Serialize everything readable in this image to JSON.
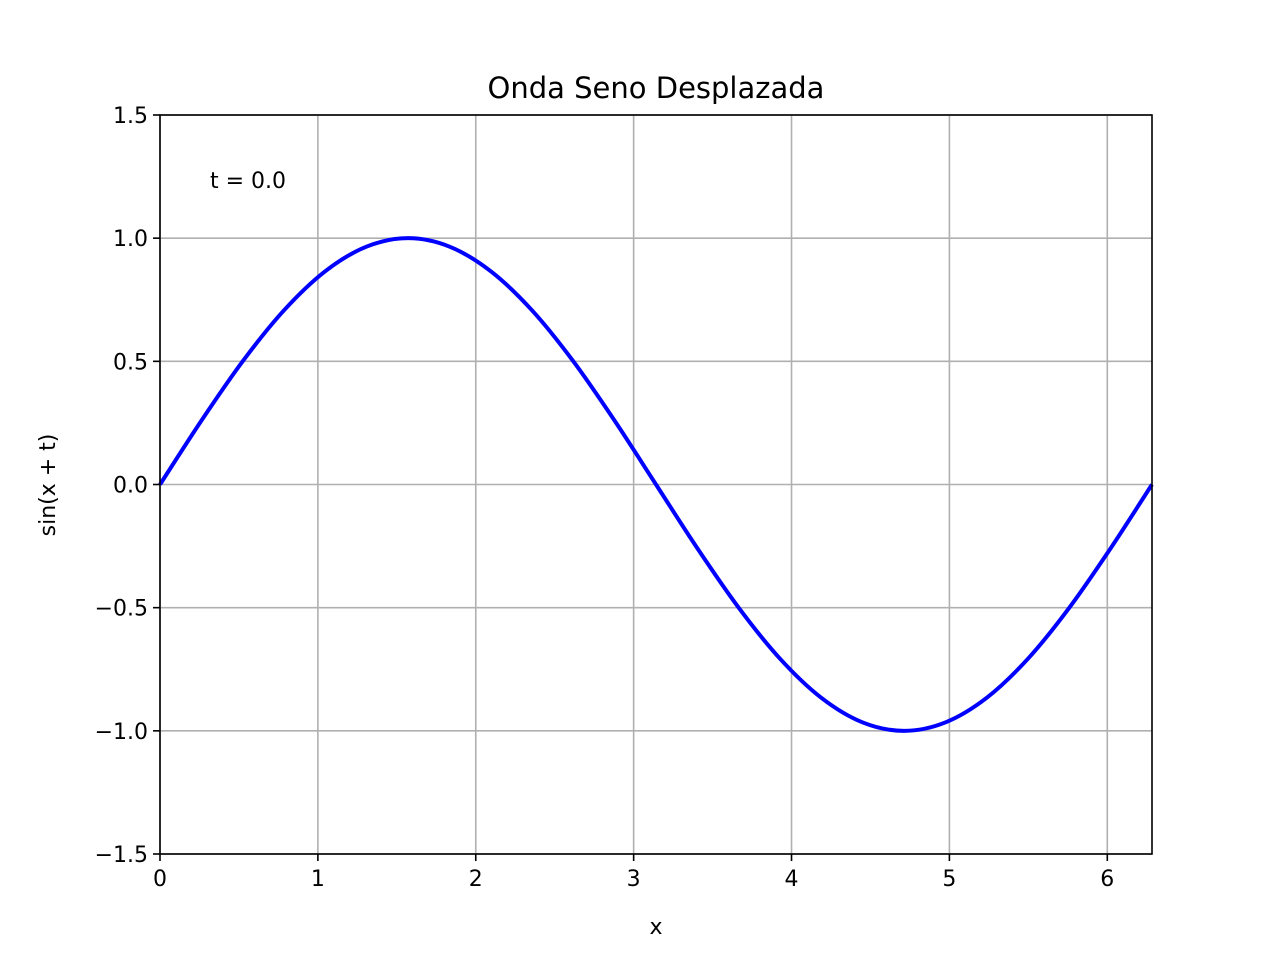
{
  "chart_data": {
    "type": "line",
    "title": "Onda Seno Desplazada",
    "xlabel": "x",
    "ylabel": "sin(x + t)",
    "xlim": [
      0,
      6.2832
    ],
    "ylim": [
      -1.5,
      1.5
    ],
    "grid": true,
    "x_ticks": [
      0,
      1,
      2,
      3,
      4,
      5,
      6
    ],
    "x_tick_labels": [
      "0",
      "1",
      "2",
      "3",
      "4",
      "5",
      "6"
    ],
    "y_ticks": [
      1.5,
      1.0,
      0.5,
      0.0,
      -0.5,
      -1.0,
      -1.5
    ],
    "y_tick_labels": [
      "1.5",
      "1.0",
      "0.5",
      "0.0",
      "−0.5",
      "−1.0",
      "−1.5"
    ],
    "annotation": "t = 0.0",
    "series": [
      {
        "color": "#0000ff",
        "x": [
          0.0,
          0.2618,
          0.5236,
          0.7854,
          1.0472,
          1.309,
          1.5708,
          1.8326,
          2.0944,
          2.3562,
          2.618,
          2.8798,
          3.1416,
          3.4034,
          3.6652,
          3.927,
          4.1888,
          4.4506,
          4.7124,
          4.9742,
          5.236,
          5.4978,
          5.7596,
          6.0214,
          6.2832
        ],
        "values": [
          0.0,
          0.2588,
          0.5,
          0.7071,
          0.866,
          0.9659,
          1.0,
          0.9659,
          0.866,
          0.7071,
          0.5,
          0.2588,
          0.0,
          -0.2588,
          -0.5,
          -0.7071,
          -0.866,
          -0.9659,
          -1.0,
          -0.9659,
          -0.866,
          -0.7071,
          -0.5,
          -0.2588,
          0.0
        ]
      }
    ]
  }
}
